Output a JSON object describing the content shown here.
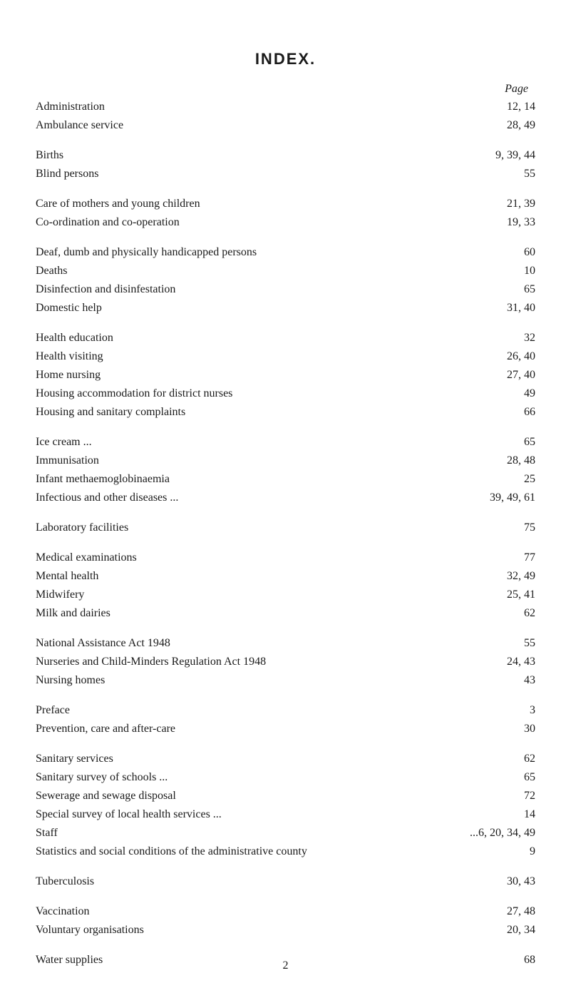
{
  "title": "INDEX.",
  "pageHeader": "Page",
  "pageNumber": "2",
  "groups": [
    [
      {
        "label": "Administration",
        "page": "12, 14"
      },
      {
        "label": "Ambulance service",
        "page": "28, 49"
      }
    ],
    [
      {
        "label": "Births",
        "page": "9, 39, 44"
      },
      {
        "label": "Blind persons",
        "page": "55"
      }
    ],
    [
      {
        "label": "Care of mothers and young children",
        "page": "21, 39"
      },
      {
        "label": "Co-ordination and co-operation",
        "page": "19, 33"
      }
    ],
    [
      {
        "label": "Deaf, dumb and physically handicapped persons",
        "page": "60"
      },
      {
        "label": "Deaths",
        "page": "10"
      },
      {
        "label": "Disinfection and disinfestation",
        "page": "65"
      },
      {
        "label": "Domestic help",
        "page": "31, 40"
      }
    ],
    [
      {
        "label": "Health education",
        "page": "32"
      },
      {
        "label": "Health visiting",
        "page": "26, 40"
      },
      {
        "label": "Home nursing",
        "page": "27, 40"
      },
      {
        "label": "Housing accommodation for district nurses",
        "page": "49"
      },
      {
        "label": "Housing and sanitary complaints",
        "page": "66"
      }
    ],
    [
      {
        "label": "Ice cream ...",
        "page": "65"
      },
      {
        "label": "Immunisation",
        "page": "28, 48"
      },
      {
        "label": "Infant methaemoglobinaemia",
        "page": "25"
      },
      {
        "label": "Infectious and other diseases ...",
        "page": "39, 49, 61"
      }
    ],
    [
      {
        "label": "Laboratory facilities",
        "page": "75"
      }
    ],
    [
      {
        "label": "Medical examinations",
        "page": "77"
      },
      {
        "label": "Mental health",
        "page": "32, 49"
      },
      {
        "label": "Midwifery",
        "page": "25, 41"
      },
      {
        "label": "Milk and dairies",
        "page": "62"
      }
    ],
    [
      {
        "label": "National Assistance Act 1948",
        "page": "55"
      },
      {
        "label": "Nurseries and Child-Minders Regulation Act 1948",
        "page": "24, 43"
      },
      {
        "label": "Nursing homes",
        "page": "43"
      }
    ],
    [
      {
        "label": "Preface",
        "page": "3"
      },
      {
        "label": "Prevention, care and after-care",
        "page": "30"
      }
    ],
    [
      {
        "label": "Sanitary services",
        "page": "62"
      },
      {
        "label": "Sanitary survey of schools ...",
        "page": "65"
      },
      {
        "label": "Sewerage and sewage disposal",
        "page": "72"
      },
      {
        "label": "Special survey of local health services ...",
        "page": "14"
      },
      {
        "label": "Staff",
        "page": "...6, 20, 34, 49"
      },
      {
        "label": "Statistics and social conditions of the administrative county",
        "page": "9"
      }
    ],
    [
      {
        "label": "Tuberculosis",
        "page": "30, 43"
      }
    ],
    [
      {
        "label": "Vaccination",
        "page": "27, 48"
      },
      {
        "label": "Voluntary organisations",
        "page": "20, 34"
      }
    ],
    [
      {
        "label": "Water supplies",
        "page": "68"
      }
    ]
  ]
}
